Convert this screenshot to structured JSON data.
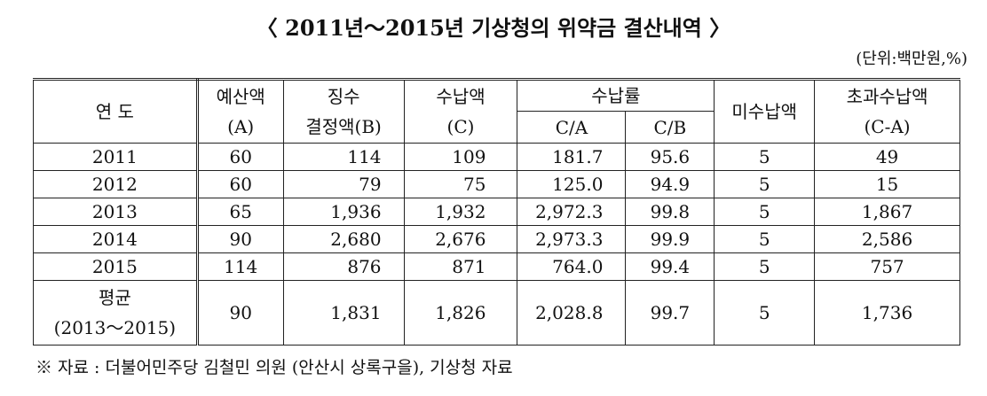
{
  "header": {
    "title": "〈 2011년～2015년 기상청의 위약금 결산내역 〉",
    "unit": "(단위:백만원,%)"
  },
  "table": {
    "header": {
      "year": "연 도",
      "budget": [
        "예산액",
        "(A)"
      ],
      "assessed": [
        "징수",
        "결정액(B)"
      ],
      "collected": [
        "수납액",
        "(C)"
      ],
      "rate": "수납률",
      "rate_ca": "C/A",
      "rate_cb": "C/B",
      "uncollected": "미수납액",
      "excess": [
        "초과수납액",
        "(C-A)"
      ]
    },
    "rows": [
      [
        "2011",
        "60",
        "114",
        "109",
        "181.7",
        "95.6",
        "5",
        "49"
      ],
      [
        "2012",
        "60",
        "79",
        "75",
        "125.0",
        "94.9",
        "5",
        "15"
      ],
      [
        "2013",
        "65",
        "1,936",
        "1,932",
        "2,972.3",
        "99.8",
        "5",
        "1,867"
      ],
      [
        "2014",
        "90",
        "2,680",
        "2,676",
        "2,973.3",
        "99.9",
        "5",
        "2,586"
      ],
      [
        "2015",
        "114",
        "876",
        "871",
        "764.0",
        "99.4",
        "5",
        "757"
      ]
    ],
    "average": {
      "label": [
        "평균",
        "(2013～2015)"
      ],
      "values": [
        "90",
        "1,831",
        "1,826",
        "2,028.8",
        "99.7",
        "5",
        "1,736"
      ]
    }
  },
  "footnote": "※ 자료 : 더불어민주당 김철민 의원 (안산시 상록구을), 기상청 자료"
}
